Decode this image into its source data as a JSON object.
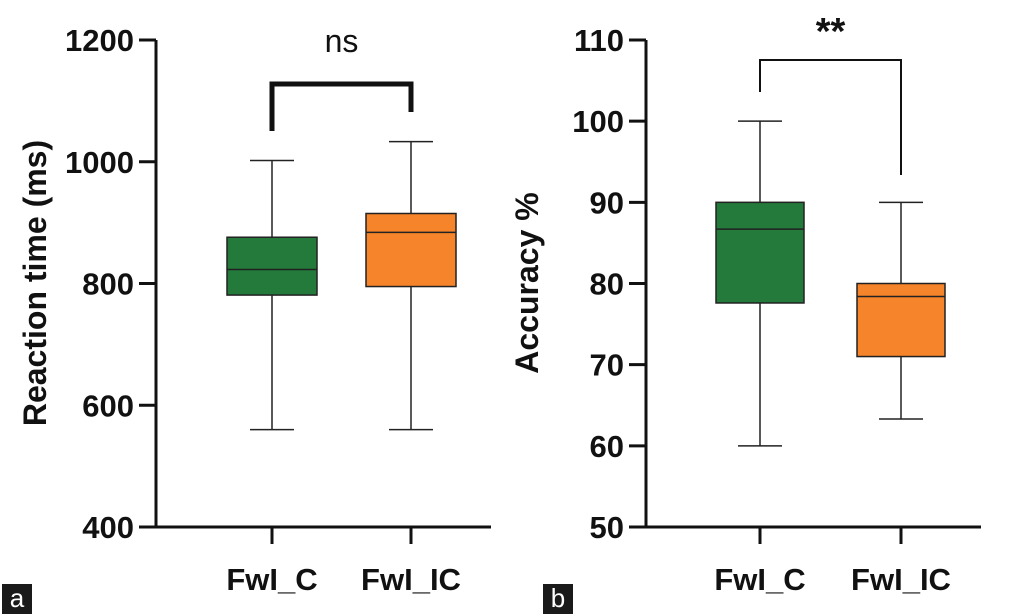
{
  "chart_data": [
    {
      "type": "box",
      "panel_label": "a",
      "title": "",
      "xlabel": "",
      "ylabel": "Reaction time (ms)",
      "ylim": [
        400,
        1200
      ],
      "yticks": [
        "400",
        "600",
        "800",
        "1000",
        "1200"
      ],
      "categories": [
        "FwI_C",
        "FwI_IC"
      ],
      "colors": [
        "#237a3b",
        "#f5842a"
      ],
      "boxes": [
        {
          "min": 560,
          "q1": 781,
          "median": 823,
          "q3": 876,
          "max": 1002
        },
        {
          "min": 560,
          "q1": 795,
          "median": 884,
          "q3": 915,
          "max": 1033
        }
      ],
      "significance": {
        "from": 0,
        "to": 1,
        "label": "ns"
      }
    },
    {
      "type": "box",
      "panel_label": "b",
      "title": "",
      "xlabel": "",
      "ylabel": "Accuracy %",
      "ylim": [
        50,
        110
      ],
      "yticks": [
        "50",
        "60",
        "70",
        "80",
        "90",
        "100",
        "110"
      ],
      "categories": [
        "FwI_C",
        "FwI_IC"
      ],
      "colors": [
        "#237a3b",
        "#f5842a"
      ],
      "boxes": [
        {
          "min": 60,
          "q1": 77.6,
          "median": 86.7,
          "q3": 90,
          "max": 100
        },
        {
          "min": 63.3,
          "q1": 71,
          "median": 78.4,
          "q3": 80,
          "max": 90
        }
      ],
      "significance": {
        "from": 0,
        "to": 1,
        "label": "**"
      }
    }
  ]
}
